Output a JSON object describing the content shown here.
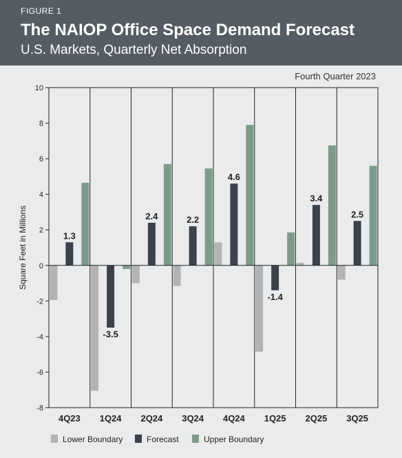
{
  "header": {
    "figure_label": "FIGURE 1",
    "title": "The NAIOP Office Space Demand Forecast",
    "subtitle": "U.S. Markets, Quarterly Net Absorption"
  },
  "note": "Fourth Quarter 2023",
  "colors": {
    "lower": "#b3b3b3",
    "forecast": "#3c424b",
    "upper": "#7d9b89",
    "header_bg": "#555c63",
    "background": "#e9ebec"
  },
  "chart_data": {
    "type": "bar",
    "ylabel": "Square Feet in Millions",
    "ylim": [
      -8,
      10
    ],
    "yticks": [
      10,
      8,
      6,
      4,
      2,
      0,
      -2,
      -4,
      -6,
      -8
    ],
    "categories": [
      "4Q23",
      "1Q24",
      "2Q24",
      "3Q24",
      "4Q24",
      "1Q25",
      "2Q25",
      "3Q25"
    ],
    "series": [
      {
        "name": "Lower Boundary",
        "color_key": "lower",
        "values": [
          -1.95,
          -7.05,
          -1.0,
          -1.15,
          1.3,
          -4.85,
          0.15,
          -0.8
        ]
      },
      {
        "name": "Forecast",
        "color_key": "forecast",
        "values": [
          1.3,
          -3.5,
          2.4,
          2.2,
          4.6,
          -1.4,
          3.4,
          2.5
        ],
        "labels": [
          "1.3",
          "-3.5",
          "2.4",
          "2.2",
          "4.6",
          "-1.4",
          "3.4",
          "2.5"
        ]
      },
      {
        "name": "Upper Boundary",
        "color_key": "upper",
        "values": [
          4.65,
          -0.2,
          5.7,
          5.45,
          7.9,
          1.85,
          6.75,
          5.6
        ]
      }
    ],
    "legend": [
      "Lower Boundary",
      "Forecast",
      "Upper Boundary"
    ],
    "legend_position": "bottom",
    "grid": false
  }
}
